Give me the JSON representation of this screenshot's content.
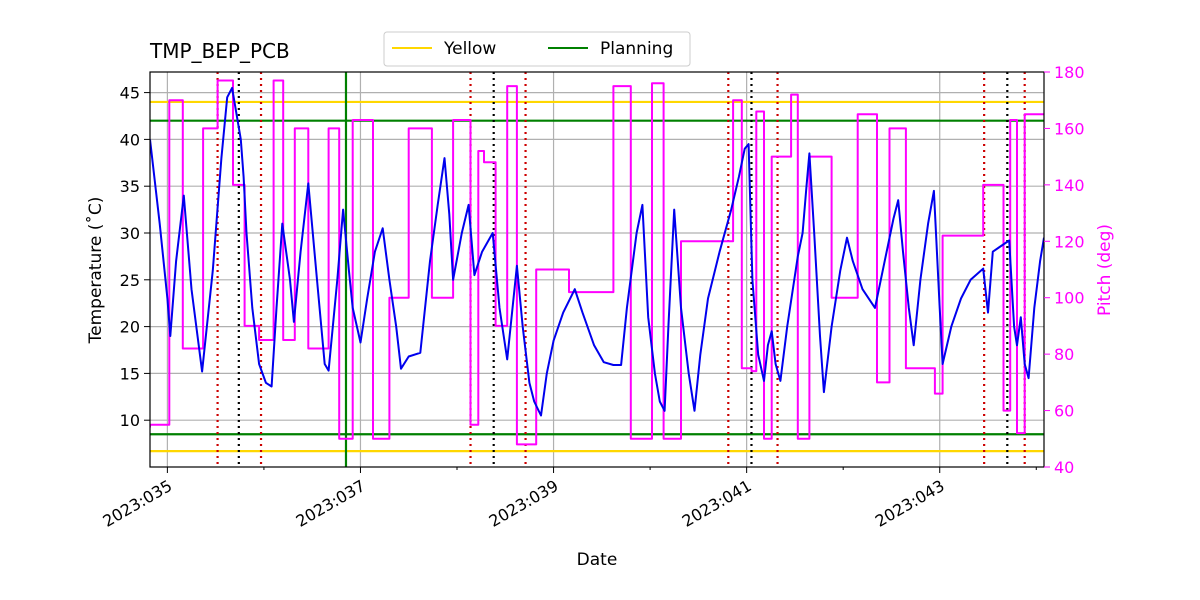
{
  "chart_data": {
    "type": "line",
    "title": "TMP_BEP_PCB",
    "xlabel": "Date",
    "ylabel_left": "Temperature ($^\\circ$C)",
    "ylabel_left_display": "Temperature (˚C)",
    "ylabel_right": "Pitch (deg)",
    "xlim": [
      34.82,
      44.08
    ],
    "ylim_left": [
      5.0,
      47.2
    ],
    "ylim_right": [
      40,
      180
    ],
    "x_ticks": [
      35,
      37,
      39,
      41,
      43
    ],
    "x_tick_labels": [
      "2023:035",
      "2023:037",
      "2023:039",
      "2023:041",
      "2023:043"
    ],
    "x_minor_ticks": [
      36,
      38,
      40,
      42,
      44
    ],
    "y_left_ticks": [
      10,
      15,
      20,
      25,
      30,
      35,
      40,
      45
    ],
    "y_right_ticks": [
      40,
      60,
      80,
      100,
      120,
      140,
      160,
      180
    ],
    "grid": true,
    "legend": {
      "placement": "top-center",
      "entries": [
        {
          "label": "Yellow",
          "color": "#ffd700"
        },
        {
          "label": "Planning",
          "color": "#008000"
        }
      ]
    },
    "limit_lines": [
      {
        "name": "yellow-high",
        "axis": "left",
        "value": 44.0,
        "color": "#ffd700"
      },
      {
        "name": "yellow-low",
        "axis": "left",
        "value": 6.7,
        "color": "#ffd700"
      },
      {
        "name": "planning-high",
        "axis": "left",
        "value": 42.0,
        "color": "#008000"
      },
      {
        "name": "planning-low",
        "axis": "left",
        "value": 8.5,
        "color": "#008000"
      }
    ],
    "planning_vline": {
      "x": 36.85,
      "color": "#008000"
    },
    "event_lines": {
      "red": [
        35.52,
        35.97,
        38.14,
        38.71,
        40.81,
        41.32,
        43.46,
        43.88
      ],
      "black": [
        35.74,
        38.38,
        41.05,
        43.7
      ],
      "red_color": "#cc0000",
      "black_color": "#000000"
    },
    "series": [
      {
        "name": "Temperature",
        "axis": "left",
        "color": "#0000ee",
        "points": [
          [
            34.82,
            40
          ],
          [
            34.92,
            31
          ],
          [
            35.0,
            23
          ],
          [
            35.03,
            19
          ],
          [
            35.09,
            27
          ],
          [
            35.17,
            34
          ],
          [
            35.25,
            24
          ],
          [
            35.36,
            15.2
          ],
          [
            35.47,
            26
          ],
          [
            35.56,
            38
          ],
          [
            35.62,
            44.5
          ],
          [
            35.67,
            45.5
          ],
          [
            35.76,
            40
          ],
          [
            35.79,
            36
          ],
          [
            35.82,
            30
          ],
          [
            35.88,
            22
          ],
          [
            35.95,
            16
          ],
          [
            36.02,
            14
          ],
          [
            36.08,
            13.6
          ],
          [
            36.13,
            22
          ],
          [
            36.19,
            31
          ],
          [
            36.27,
            25
          ],
          [
            36.31,
            20.5
          ],
          [
            36.38,
            28
          ],
          [
            36.46,
            35.3
          ],
          [
            36.55,
            25
          ],
          [
            36.63,
            16
          ],
          [
            36.67,
            15.3
          ],
          [
            36.76,
            25
          ],
          [
            36.82,
            32.5
          ],
          [
            36.88,
            26
          ],
          [
            36.92,
            22
          ],
          [
            37.0,
            18.3
          ],
          [
            37.07,
            23
          ],
          [
            37.15,
            28
          ],
          [
            37.23,
            30.5
          ],
          [
            37.3,
            25
          ],
          [
            37.37,
            20
          ],
          [
            37.42,
            15.5
          ],
          [
            37.5,
            16.8
          ],
          [
            37.62,
            17.2
          ],
          [
            37.72,
            27
          ],
          [
            37.8,
            33
          ],
          [
            37.87,
            38
          ],
          [
            37.92,
            32
          ],
          [
            37.96,
            25
          ],
          [
            38.05,
            30
          ],
          [
            38.12,
            33
          ],
          [
            38.18,
            25.5
          ],
          [
            38.26,
            28
          ],
          [
            38.37,
            30
          ],
          [
            38.44,
            22
          ],
          [
            38.52,
            16.5
          ],
          [
            38.62,
            26.5
          ],
          [
            38.68,
            20
          ],
          [
            38.75,
            14
          ],
          [
            38.8,
            12
          ],
          [
            38.87,
            10.5
          ],
          [
            38.93,
            15
          ],
          [
            39.0,
            18.5
          ],
          [
            39.1,
            21.5
          ],
          [
            39.22,
            24
          ],
          [
            39.3,
            21.5
          ],
          [
            39.42,
            18
          ],
          [
            39.52,
            16.2
          ],
          [
            39.62,
            15.9
          ],
          [
            39.7,
            15.9
          ],
          [
            39.76,
            22
          ],
          [
            39.86,
            30
          ],
          [
            39.92,
            33
          ],
          [
            39.98,
            21
          ],
          [
            40.05,
            15
          ],
          [
            40.1,
            12
          ],
          [
            40.15,
            11
          ],
          [
            40.19,
            20
          ],
          [
            40.25,
            32.5
          ],
          [
            40.32,
            22
          ],
          [
            40.4,
            15
          ],
          [
            40.46,
            11
          ],
          [
            40.52,
            17
          ],
          [
            40.6,
            23
          ],
          [
            40.72,
            28
          ],
          [
            40.84,
            32.5
          ],
          [
            40.92,
            36
          ],
          [
            40.98,
            39
          ],
          [
            41.02,
            39.5
          ],
          [
            41.06,
            25
          ],
          [
            41.12,
            17
          ],
          [
            41.18,
            14.2
          ],
          [
            41.22,
            18
          ],
          [
            41.26,
            19.5
          ],
          [
            41.3,
            16
          ],
          [
            41.35,
            14.2
          ],
          [
            41.42,
            20
          ],
          [
            41.53,
            27.5
          ],
          [
            41.58,
            30
          ],
          [
            41.62,
            35
          ],
          [
            41.65,
            38.5
          ],
          [
            41.7,
            30
          ],
          [
            41.76,
            19
          ],
          [
            41.8,
            13
          ],
          [
            41.88,
            20
          ],
          [
            41.97,
            26
          ],
          [
            42.04,
            29.5
          ],
          [
            42.1,
            27
          ],
          [
            42.2,
            24
          ],
          [
            42.33,
            22
          ],
          [
            42.43,
            27
          ],
          [
            42.52,
            31.5
          ],
          [
            42.57,
            33.5
          ],
          [
            42.62,
            28
          ],
          [
            42.68,
            22
          ],
          [
            42.73,
            18
          ],
          [
            42.8,
            25
          ],
          [
            42.88,
            31
          ],
          [
            42.94,
            34.5
          ],
          [
            43.0,
            22
          ],
          [
            43.03,
            16
          ],
          [
            43.12,
            20
          ],
          [
            43.22,
            23
          ],
          [
            43.32,
            25
          ],
          [
            43.45,
            26.2
          ],
          [
            43.5,
            21.5
          ],
          [
            43.55,
            28
          ],
          [
            43.62,
            28.5
          ],
          [
            43.72,
            29.2
          ],
          [
            43.77,
            20
          ],
          [
            43.8,
            18
          ],
          [
            43.84,
            21
          ],
          [
            43.88,
            16
          ],
          [
            43.92,
            14.5
          ],
          [
            43.98,
            22
          ],
          [
            44.04,
            27
          ],
          [
            44.08,
            29.5
          ]
        ]
      },
      {
        "name": "Pitch",
        "axis": "right",
        "color": "#ff00ff",
        "points": [
          [
            34.82,
            54
          ],
          [
            34.82,
            55
          ],
          [
            35.02,
            55
          ],
          [
            35.02,
            170
          ],
          [
            35.16,
            170
          ],
          [
            35.16,
            82
          ],
          [
            35.37,
            82
          ],
          [
            35.37,
            160
          ],
          [
            35.52,
            160
          ],
          [
            35.52,
            177
          ],
          [
            35.68,
            177
          ],
          [
            35.68,
            140
          ],
          [
            35.8,
            140
          ],
          [
            35.8,
            90
          ],
          [
            35.95,
            90
          ],
          [
            35.95,
            85
          ],
          [
            36.1,
            85
          ],
          [
            36.1,
            177
          ],
          [
            36.2,
            177
          ],
          [
            36.2,
            85
          ],
          [
            36.32,
            85
          ],
          [
            36.32,
            160
          ],
          [
            36.46,
            160
          ],
          [
            36.46,
            82
          ],
          [
            36.67,
            82
          ],
          [
            36.67,
            160
          ],
          [
            36.78,
            160
          ],
          [
            36.78,
            50
          ],
          [
            36.92,
            50
          ],
          [
            36.92,
            163
          ],
          [
            37.13,
            163
          ],
          [
            37.13,
            50
          ],
          [
            37.3,
            50
          ],
          [
            37.3,
            100
          ],
          [
            37.5,
            100
          ],
          [
            37.5,
            160
          ],
          [
            37.74,
            160
          ],
          [
            37.74,
            100
          ],
          [
            37.96,
            100
          ],
          [
            37.96,
            163
          ],
          [
            38.14,
            163
          ],
          [
            38.14,
            55
          ],
          [
            38.22,
            55
          ],
          [
            38.22,
            152
          ],
          [
            38.28,
            152
          ],
          [
            38.28,
            148
          ],
          [
            38.4,
            148
          ],
          [
            38.4,
            90
          ],
          [
            38.52,
            90
          ],
          [
            38.52,
            175
          ],
          [
            38.62,
            175
          ],
          [
            38.62,
            48
          ],
          [
            38.82,
            48
          ],
          [
            38.82,
            110
          ],
          [
            39.16,
            110
          ],
          [
            39.16,
            102
          ],
          [
            39.62,
            102
          ],
          [
            39.62,
            175
          ],
          [
            39.8,
            175
          ],
          [
            39.8,
            50
          ],
          [
            40.02,
            50
          ],
          [
            40.02,
            176
          ],
          [
            40.14,
            176
          ],
          [
            40.14,
            50
          ],
          [
            40.32,
            50
          ],
          [
            40.32,
            120
          ],
          [
            40.86,
            120
          ],
          [
            40.86,
            170
          ],
          [
            40.95,
            170
          ],
          [
            40.95,
            75
          ],
          [
            41.05,
            75
          ],
          [
            41.05,
            74
          ],
          [
            41.1,
            74
          ],
          [
            41.1,
            166
          ],
          [
            41.18,
            166
          ],
          [
            41.18,
            50
          ],
          [
            41.26,
            50
          ],
          [
            41.26,
            150
          ],
          [
            41.46,
            150
          ],
          [
            41.46,
            172
          ],
          [
            41.53,
            172
          ],
          [
            41.53,
            50
          ],
          [
            41.65,
            50
          ],
          [
            41.65,
            150
          ],
          [
            41.88,
            150
          ],
          [
            41.88,
            100
          ],
          [
            42.15,
            100
          ],
          [
            42.15,
            165
          ],
          [
            42.35,
            165
          ],
          [
            42.35,
            70
          ],
          [
            42.48,
            70
          ],
          [
            42.48,
            160
          ],
          [
            42.65,
            160
          ],
          [
            42.65,
            75
          ],
          [
            42.95,
            75
          ],
          [
            42.95,
            66
          ],
          [
            43.03,
            66
          ],
          [
            43.03,
            122
          ],
          [
            43.45,
            122
          ],
          [
            43.45,
            140
          ],
          [
            43.66,
            140
          ],
          [
            43.66,
            60
          ],
          [
            43.73,
            60
          ],
          [
            43.73,
            163
          ],
          [
            43.8,
            163
          ],
          [
            43.8,
            52
          ],
          [
            43.88,
            52
          ],
          [
            43.88,
            165
          ],
          [
            44.08,
            165
          ]
        ]
      }
    ]
  }
}
